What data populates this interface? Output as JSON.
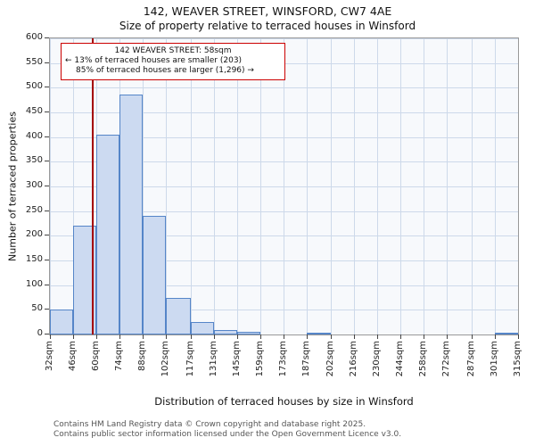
{
  "chart_data": {
    "type": "bar",
    "title": "142, WEAVER STREET, WINSFORD, CW7 4AE",
    "subtitle": "Size of property relative to terraced houses in Winsford",
    "xlabel": "Distribution of terraced houses by size in Winsford",
    "ylabel": "Number of terraced properties",
    "x_tick_values": [
      32,
      46,
      60,
      74,
      88,
      102,
      117,
      131,
      145,
      159,
      173,
      187,
      202,
      216,
      230,
      244,
      258,
      272,
      287,
      301,
      315
    ],
    "x_tick_labels": [
      "32sqm",
      "46sqm",
      "60sqm",
      "74sqm",
      "88sqm",
      "102sqm",
      "117sqm",
      "131sqm",
      "145sqm",
      "159sqm",
      "173sqm",
      "187sqm",
      "202sqm",
      "216sqm",
      "230sqm",
      "244sqm",
      "258sqm",
      "272sqm",
      "287sqm",
      "301sqm",
      "315sqm"
    ],
    "y_ticks": [
      0,
      50,
      100,
      150,
      200,
      250,
      300,
      350,
      400,
      450,
      500,
      550,
      600
    ],
    "ylim": [
      0,
      600
    ],
    "bin_counts": [
      50,
      220,
      405,
      487,
      240,
      75,
      25,
      9,
      5,
      0,
      0,
      2,
      0,
      0,
      0,
      0,
      0,
      0,
      0,
      2
    ],
    "grid": true,
    "marker": {
      "value": 58
    },
    "annotation_lines": [
      "142 WEAVER STREET: 58sqm",
      "← 13% of terraced houses are smaller (203)",
      "85% of terraced houses are larger (1,296) →"
    ],
    "colors": {
      "bar_fill": "#ccdaf1",
      "bar_edge": "#5585c8",
      "marker_line": "#a40000",
      "grid_line": "#cdd9ea",
      "annotation_border": "#cc0000"
    }
  },
  "footer": {
    "line1": "Contains HM Land Registry data © Crown copyright and database right 2025.",
    "line2": "Contains public sector information licensed under the Open Government Licence v3.0."
  }
}
